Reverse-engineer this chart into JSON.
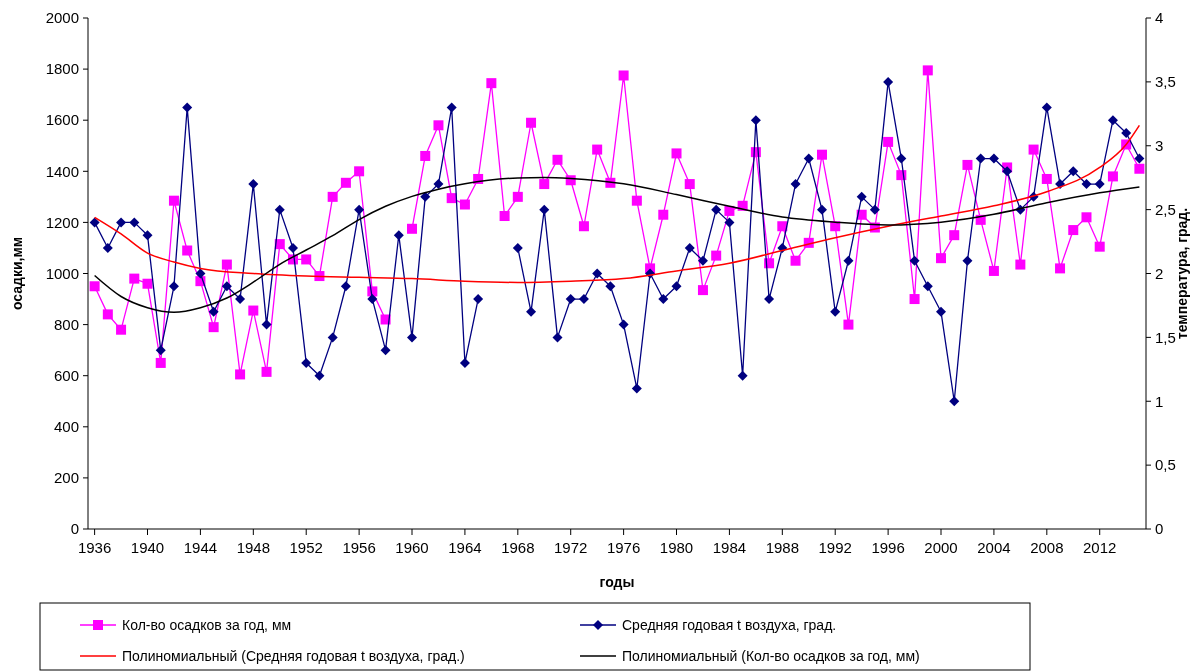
{
  "chart_data": {
    "type": "line",
    "xlabel": "годы",
    "ylabel": "осадки,мм",
    "y2label": "температура, град.",
    "x": [
      1936,
      1937,
      1938,
      1939,
      1940,
      1941,
      1942,
      1943,
      1944,
      1945,
      1946,
      1947,
      1948,
      1949,
      1950,
      1951,
      1952,
      1953,
      1954,
      1955,
      1956,
      1957,
      1958,
      1959,
      1960,
      1961,
      1962,
      1963,
      1964,
      1965,
      1966,
      1967,
      1968,
      1969,
      1970,
      1971,
      1972,
      1973,
      1974,
      1975,
      1976,
      1977,
      1978,
      1979,
      1980,
      1981,
      1982,
      1983,
      1984,
      1985,
      1986,
      1987,
      1988,
      1989,
      1990,
      1991,
      1992,
      1993,
      1994,
      1995,
      1996,
      1997,
      1998,
      1999,
      2000,
      2001,
      2002,
      2003,
      2004,
      2005,
      2006,
      2007,
      2008,
      2009,
      2010,
      2011,
      2012,
      2013,
      2014,
      2015
    ],
    "xlim": [
      1935.5,
      2015.5
    ],
    "xticks": [
      1936,
      1940,
      1944,
      1948,
      1952,
      1956,
      1960,
      1964,
      1968,
      1972,
      1976,
      1980,
      1984,
      1988,
      1992,
      1996,
      2000,
      2004,
      2008,
      2012
    ],
    "ylim": [
      0,
      2000
    ],
    "yticks": [
      0,
      200,
      400,
      600,
      800,
      1000,
      1200,
      1400,
      1600,
      1800,
      2000
    ],
    "y2lim": [
      0,
      4
    ],
    "y2ticks": [
      0,
      {
        "value": 0.5,
        "label": "0,5"
      },
      1,
      {
        "value": 1.5,
        "label": "1,5"
      },
      2,
      {
        "value": 2.5,
        "label": "2,5"
      },
      3,
      {
        "value": 3.5,
        "label": "3,5"
      },
      4
    ],
    "legend": "bottom",
    "series": [
      {
        "name": "Кол-во осадков за год, мм",
        "color": "#ff00ff",
        "marker": "square",
        "values": [
          950,
          840,
          780,
          980,
          960,
          650,
          1285,
          1090,
          970,
          790,
          1035,
          605,
          855,
          615,
          1115,
          1055,
          1055,
          990,
          1300,
          1355,
          1400,
          930,
          820,
          null,
          1175,
          1460,
          1580,
          1295,
          1270,
          1370,
          1745,
          1225,
          1300,
          1590,
          1350,
          1445,
          1365,
          1185,
          1485,
          1355,
          1775,
          1285,
          1020,
          1230,
          1470,
          1350,
          935,
          1070,
          1245,
          1265,
          1475,
          1040,
          1185,
          1050,
          1120,
          1465,
          1185,
          800,
          1230,
          1180,
          1515,
          1385,
          900,
          1795,
          1060,
          1150,
          1425,
          1210,
          1010,
          1415,
          1035,
          1485,
          1370,
          1020,
          1170,
          1220,
          1105,
          1380,
          1505,
          1410
        ]
      },
      {
        "name": "Средняя годовая t воздуха, град.",
        "color": "#000080",
        "marker": "diamond",
        "axis": "y2",
        "values": [
          2.4,
          2.2,
          2.4,
          2.4,
          2.3,
          1.4,
          1.9,
          3.3,
          2.0,
          1.7,
          1.9,
          1.8,
          2.7,
          1.6,
          2.5,
          2.2,
          1.3,
          1.2,
          1.5,
          1.9,
          2.5,
          1.8,
          1.4,
          2.3,
          1.5,
          2.6,
          2.7,
          3.3,
          1.3,
          1.8,
          null,
          null,
          2.2,
          1.7,
          2.5,
          1.5,
          1.8,
          1.8,
          2.0,
          1.9,
          1.6,
          1.1,
          2.0,
          1.8,
          1.9,
          2.2,
          2.1,
          2.5,
          2.4,
          1.2,
          3.2,
          1.8,
          2.2,
          2.7,
          2.9,
          2.5,
          1.7,
          2.1,
          2.6,
          2.5,
          3.5,
          2.9,
          2.1,
          1.9,
          1.7,
          1.0,
          2.1,
          2.9,
          2.9,
          2.8,
          2.5,
          2.6,
          3.3,
          2.7,
          2.8,
          2.7,
          2.7,
          3.2,
          3.1,
          2.9
        ]
      },
      {
        "name": "Полиномиальный (Средняя годовая t воздуха, град.)",
        "color": "#ff0000",
        "marker": "none",
        "axis": "y2",
        "x": [
          1936,
          1938,
          1940,
          1942,
          1944,
          1948,
          1952,
          1956,
          1960,
          1964,
          1968,
          1972,
          1976,
          1980,
          1984,
          1988,
          1992,
          1996,
          2000,
          2004,
          2008,
          2012,
          2014,
          2015
        ],
        "values": [
          2.44,
          2.31,
          2.16,
          2.09,
          2.04,
          2.0,
          1.98,
          1.97,
          1.96,
          1.94,
          1.93,
          1.94,
          1.96,
          2.02,
          2.08,
          2.18,
          2.28,
          2.37,
          2.45,
          2.53,
          2.64,
          2.83,
          3.01,
          3.16
        ]
      },
      {
        "name": "Полиномиальный (Кол-во осадков за год, мм)",
        "color": "#000000",
        "marker": "none",
        "x": [
          1936,
          1938,
          1940,
          1942,
          1944,
          1946,
          1948,
          1950,
          1952,
          1954,
          1956,
          1958,
          1960,
          1962,
          1964,
          1968,
          1970,
          1972,
          1976,
          1980,
          1984,
          1988,
          1992,
          1996,
          2000,
          2004,
          2008,
          2012,
          2015
        ],
        "values": [
          992,
          910,
          866,
          848,
          866,
          904,
          966,
          1036,
          1092,
          1148,
          1211,
          1263,
          1302,
          1330,
          1351,
          1374,
          1376,
          1372,
          1351,
          1309,
          1263,
          1221,
          1201,
          1190,
          1201,
          1232,
          1277,
          1316,
          1339
        ]
      }
    ]
  }
}
